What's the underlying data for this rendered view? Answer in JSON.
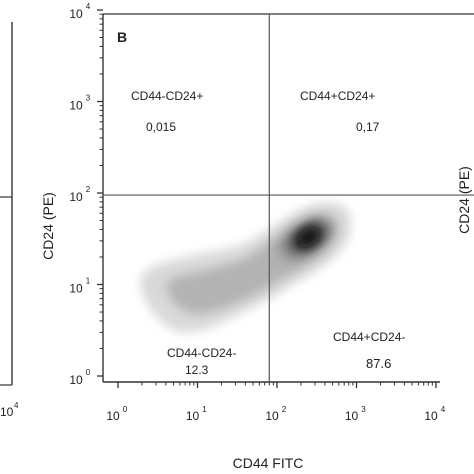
{
  "chart_data": {
    "type": "heatmap",
    "panel_label": "B",
    "xlabel": "CD44 FITC",
    "ylabel": "CD24 (PE)",
    "scale": "log",
    "xlim": [
      1,
      10000
    ],
    "ylim": [
      1,
      10000
    ],
    "x_ticks": [
      {
        "base": "10",
        "exp": "0",
        "value": 1
      },
      {
        "base": "10",
        "exp": "1",
        "value": 10
      },
      {
        "base": "10",
        "exp": "2",
        "value": 100
      },
      {
        "base": "10",
        "exp": "3",
        "value": 1000
      },
      {
        "base": "10",
        "exp": "4",
        "value": 10000
      }
    ],
    "y_ticks": [
      {
        "base": "10",
        "exp": "0",
        "value": 1
      },
      {
        "base": "10",
        "exp": "1",
        "value": 10
      },
      {
        "base": "10",
        "exp": "2",
        "value": 100
      },
      {
        "base": "10",
        "exp": "3",
        "value": 1000
      },
      {
        "base": "10",
        "exp": "4",
        "value": 10000
      }
    ],
    "gates": {
      "x": 80,
      "y": 95
    },
    "quadrants": [
      {
        "name": "CD44-CD24+",
        "value": "0,015",
        "position": "top-left"
      },
      {
        "name": "CD44+CD24+",
        "value": "0,17",
        "position": "top-right"
      },
      {
        "name": "CD44-CD24-",
        "value": "12.3",
        "position": "bottom-left"
      },
      {
        "name": "CD44+CD24-",
        "value": "87.6",
        "position": "bottom-right"
      }
    ],
    "density_peak": {
      "x": 300,
      "y": 35
    }
  },
  "left_panel": {
    "tick": {
      "base": "10",
      "exp": "4"
    }
  },
  "right_panel": {
    "ylabel": "CD24 (PE)"
  }
}
